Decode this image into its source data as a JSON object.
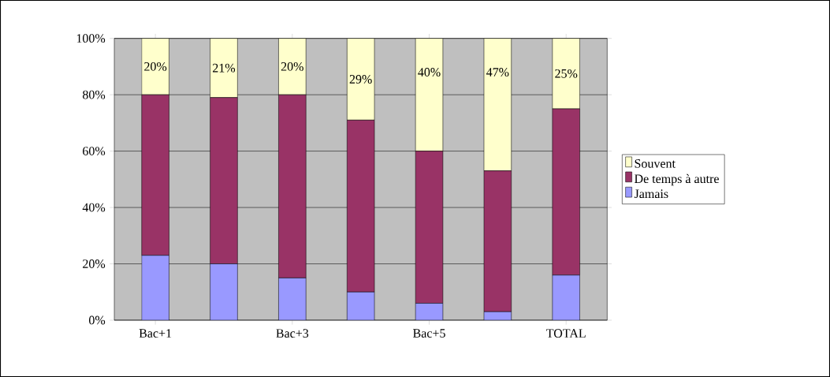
{
  "chart_data": {
    "type": "bar",
    "stacked": true,
    "categories": [
      "Bac+1",
      null,
      "Bac+3",
      null,
      "Bac+5",
      null,
      "TOTAL"
    ],
    "series": [
      {
        "name": "Jamais",
        "color": "#9999ff",
        "values": [
          23,
          20,
          15,
          10,
          6,
          3,
          16
        ]
      },
      {
        "name": "De temps à autre",
        "color": "#993366",
        "values": [
          57,
          59,
          65,
          61,
          54,
          50,
          59
        ]
      },
      {
        "name": "Souvent",
        "color": "#ffffcc",
        "values": [
          20,
          21,
          20,
          29,
          40,
          47,
          25
        ],
        "value_labels": [
          "20%",
          "21%",
          "20%",
          "29%",
          "40%",
          "47%",
          "25%"
        ]
      }
    ],
    "ylim": [
      0,
      100
    ],
    "yticks": [
      {
        "value": 0,
        "label": "0%"
      },
      {
        "value": 20,
        "label": "20%"
      },
      {
        "value": 40,
        "label": "40%"
      },
      {
        "value": 60,
        "label": "60%"
      },
      {
        "value": 80,
        "label": "80%"
      },
      {
        "value": 100,
        "label": "100%"
      }
    ],
    "grid": "y",
    "legend": "right"
  }
}
